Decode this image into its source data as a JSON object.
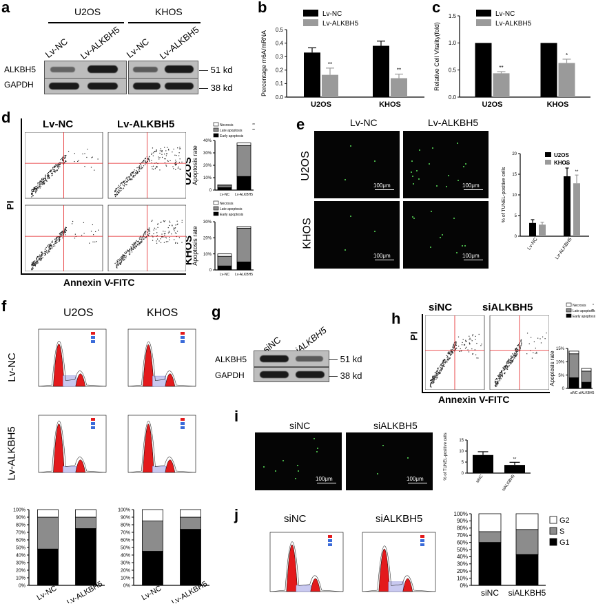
{
  "panels": {
    "a": {
      "letter": "a",
      "cell_lines": [
        "U2OS",
        "KHOS"
      ],
      "lanes": [
        "Lv-NC",
        "Lv-ALKBH5",
        "Lv-NC",
        "Lv-ALKBH5"
      ],
      "proteins": [
        "ALKBH5",
        "GAPDH"
      ],
      "sizes": [
        "51 kd",
        "38 kd"
      ]
    },
    "b": {
      "letter": "b"
    },
    "c": {
      "letter": "c"
    },
    "d": {
      "letter": "d",
      "col_titles": [
        "Lv-NC",
        "Lv-ALKBH5"
      ],
      "row_labels": [
        "U2OS",
        "KHOS"
      ],
      "ylabel": "PI",
      "xlabel": "Annexin V-FITC"
    },
    "e": {
      "letter": "e",
      "col_titles": [
        "Lv-NC",
        "Lv-ALKBH5"
      ],
      "row_labels": [
        "U2OS",
        "KHOS"
      ],
      "scale": "100μm"
    },
    "f": {
      "letter": "f",
      "col_titles": [
        "U2OS",
        "KHOS"
      ],
      "row_labels": [
        "Lv-NC",
        "Lv-ALKBH5"
      ]
    },
    "g": {
      "letter": "g",
      "lanes": [
        "siNC",
        "siALKBH5"
      ],
      "proteins": [
        "ALKBH5",
        "GAPDH"
      ],
      "sizes": [
        "51 kd",
        "38 kd"
      ]
    },
    "h": {
      "letter": "h",
      "col_titles": [
        "siNC",
        "siALKBH5"
      ],
      "ylabel": "PI",
      "xlabel": "Annexin V-FITC"
    },
    "i": {
      "letter": "i",
      "col_titles": [
        "siNC",
        "siALKBH5"
      ],
      "scale": "100μm"
    },
    "j": {
      "letter": "j",
      "col_titles": [
        "siNC",
        "siALKBH5"
      ]
    }
  },
  "colors": {
    "dark": "#000000",
    "gray": "#9a9a9a",
    "red": "#e31a1c"
  },
  "chart_data": [
    {
      "id": "b",
      "type": "bar",
      "categories": [
        "U2OS",
        "KHOS"
      ],
      "series": [
        {
          "name": "Lv-NC",
          "values": [
            0.33,
            0.38
          ],
          "err": [
            0.035,
            0.035
          ]
        },
        {
          "name": "Lv-ALKBH5",
          "values": [
            0.165,
            0.14
          ],
          "err": [
            0.05,
            0.03
          ]
        }
      ],
      "ylabel": "Percentage m6A/mRNA",
      "ylim": [
        0,
        0.5
      ],
      "yticks": [
        "0.0",
        "0.1",
        "0.2",
        "0.3",
        "0.4",
        "0.5"
      ],
      "sig": [
        "**",
        "**"
      ]
    },
    {
      "id": "c",
      "type": "bar",
      "categories": [
        "U2OS",
        "KHOS"
      ],
      "series": [
        {
          "name": "Lv-NC",
          "values": [
            1.0,
            1.0
          ],
          "err": [
            0,
            0
          ]
        },
        {
          "name": "Lv-ALKBH5",
          "values": [
            0.44,
            0.63
          ],
          "err": [
            0.03,
            0.07
          ]
        }
      ],
      "ylabel": "Relative Cell Vitality(fold)",
      "ylim": [
        0,
        1.5
      ],
      "yticks": [
        "0.0",
        "0.5",
        "1.0",
        "1.5"
      ],
      "sig": [
        "**",
        "*"
      ]
    },
    {
      "id": "d1",
      "type": "bar",
      "stacked": true,
      "categories": [
        "Lv-NC",
        "Lv-ALKBH5"
      ],
      "series": [
        {
          "name": "Early apoptosis",
          "values": [
            2,
            11
          ]
        },
        {
          "name": "Late apoptosis",
          "values": [
            1.5,
            25
          ]
        },
        {
          "name": "Necrosis",
          "values": [
            0.8,
            2
          ]
        }
      ],
      "ylabel": "Apoptosis rate",
      "ylim": [
        0,
        40
      ],
      "yticks": [
        "0",
        "10%",
        "20%",
        "30%",
        "40%"
      ],
      "legend_sig": [
        "",
        "**",
        "**"
      ]
    },
    {
      "id": "d2",
      "type": "bar",
      "stacked": true,
      "categories": [
        "Lv-NC",
        "Lv-ALKBH5"
      ],
      "series": [
        {
          "name": "Early apoptosis",
          "values": [
            2.5,
            5
          ]
        },
        {
          "name": "Late apoptosis",
          "values": [
            6,
            21
          ]
        },
        {
          "name": "Necrosis",
          "values": [
            1.5,
            1
          ]
        }
      ],
      "ylabel": "Apoptosis rate",
      "ylim": [
        0,
        30
      ],
      "yticks": [
        "0",
        "10%",
        "20%",
        "30%"
      ]
    },
    {
      "id": "e",
      "type": "bar",
      "categories": [
        "Lv-NC",
        "Lv-ALKBH5"
      ],
      "series": [
        {
          "name": "U2OS",
          "values": [
            3.2,
            14.5
          ],
          "err": [
            0.8,
            2
          ]
        },
        {
          "name": "KHOS",
          "values": [
            2.8,
            12.8
          ],
          "err": [
            0.6,
            2
          ]
        }
      ],
      "ylabel": "% of TUNEL-positive cells",
      "ylim": [
        0,
        20
      ],
      "yticks": [
        "0",
        "5",
        "10",
        "15",
        "20"
      ],
      "sig": [
        "",
        "**",
        "**"
      ]
    },
    {
      "id": "f1",
      "type": "bar",
      "stacked": true,
      "categories": [
        "Lv-NC",
        "Lv-ALKBH5"
      ],
      "series": [
        {
          "name": "G1",
          "values": [
            48,
            75
          ]
        },
        {
          "name": "S",
          "values": [
            42,
            15
          ]
        },
        {
          "name": "G2",
          "values": [
            10,
            10
          ]
        }
      ],
      "ylim": [
        0,
        100
      ],
      "yticks": [
        "0%",
        "10%",
        "20%",
        "30%",
        "40%",
        "50%",
        "60%",
        "70%",
        "80%",
        "90%",
        "100%"
      ]
    },
    {
      "id": "f2",
      "type": "bar",
      "stacked": true,
      "categories": [
        "Lv-NC",
        "Lv-ALKBH5"
      ],
      "series": [
        {
          "name": "G1",
          "values": [
            45,
            74
          ]
        },
        {
          "name": "S",
          "values": [
            40,
            16
          ]
        },
        {
          "name": "G2",
          "values": [
            15,
            10
          ]
        }
      ],
      "ylim": [
        0,
        100
      ],
      "yticks": [
        "0%",
        "10%",
        "20%",
        "30%",
        "40%",
        "50%",
        "60%",
        "70%",
        "80%",
        "90%",
        "100%"
      ]
    },
    {
      "id": "h",
      "type": "bar",
      "stacked": true,
      "categories": [
        "siNC",
        "siALKBH5"
      ],
      "series": [
        {
          "name": "Early apoptosis",
          "values": [
            4,
            2.3
          ]
        },
        {
          "name": "Late apoptosis",
          "values": [
            9,
            4.2
          ]
        },
        {
          "name": "Necrosis",
          "values": [
            1,
            1
          ]
        }
      ],
      "ylabel": "Apoptosis rate",
      "ylim": [
        0,
        15
      ],
      "yticks": [
        "0",
        "5%",
        "10%",
        "15%"
      ],
      "legend_sig": [
        "",
        "**",
        "*"
      ]
    },
    {
      "id": "i",
      "type": "bar",
      "categories": [
        "siNC",
        "siALKBH5"
      ],
      "series": [
        {
          "name": "",
          "values": [
            8.2,
            3.7
          ],
          "err": [
            1.5,
            1.2
          ]
        }
      ],
      "ylabel": "% of TUNEL-positive cells",
      "ylim": [
        0,
        15
      ],
      "yticks": [
        "0",
        "5",
        "10",
        "15"
      ],
      "sig": [
        "",
        "**"
      ]
    },
    {
      "id": "j",
      "type": "bar",
      "stacked": true,
      "categories": [
        "siNC",
        "siALKBH5"
      ],
      "series": [
        {
          "name": "G1",
          "values": [
            60,
            43
          ]
        },
        {
          "name": "S",
          "values": [
            15,
            35
          ]
        },
        {
          "name": "G2",
          "values": [
            25,
            22
          ]
        }
      ],
      "ylim": [
        0,
        100
      ],
      "yticks": [
        "0%",
        "10%",
        "20%",
        "30%",
        "40%",
        "50%",
        "60%",
        "70%",
        "80%",
        "90%",
        "100%"
      ]
    }
  ]
}
